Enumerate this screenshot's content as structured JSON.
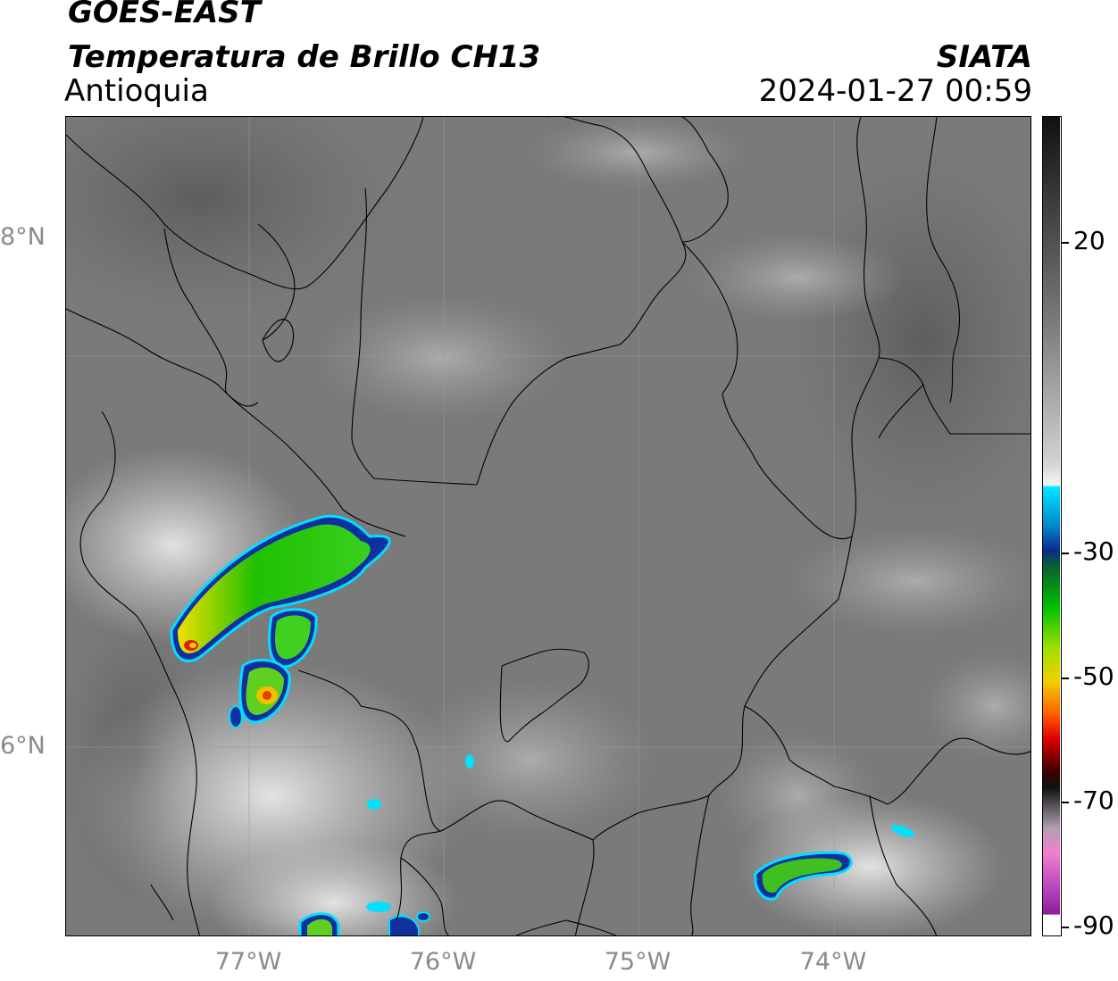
{
  "header": {
    "satellite": "GOES-EAST",
    "product": "Temperatura de Brillo CH13",
    "region": "Antioquia",
    "brand": "SIATA",
    "datetime": "2024-01-27 00:59"
  },
  "axes": {
    "lat_labels": [
      "8°N",
      "6°N"
    ],
    "lon_labels": [
      "77°W",
      "76°W",
      "75°W",
      "74°W"
    ]
  },
  "colorbar": {
    "ticks": [
      "20",
      "-30",
      "-50",
      "-70",
      "-90"
    ],
    "colors": {
      "gray_dark": "#1a1a1a",
      "gray_light": "#f2f2f2",
      "cyan": "#00e5ff",
      "blue": "#0b2a8f",
      "green": "#00c000",
      "yellow": "#f0e000",
      "red": "#e00000",
      "black": "#111111",
      "pink": "#e060c0",
      "purple": "#9020a0"
    }
  }
}
